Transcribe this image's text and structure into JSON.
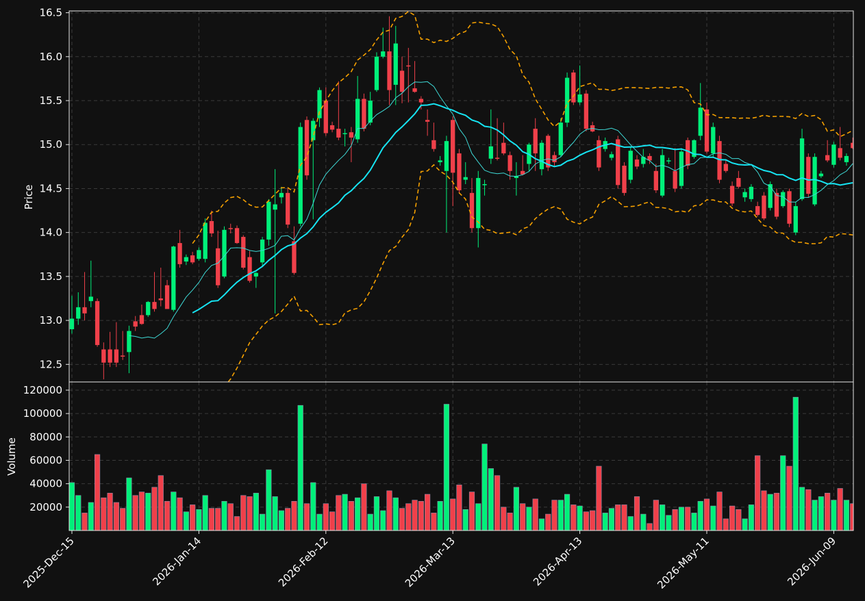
{
  "colors": {
    "background": "#111111",
    "up": "#00f07a",
    "down": "#f0404a",
    "ma_fast": "#3ed9d6",
    "ma_slow": "#16e4f2",
    "bands": "#f5a000",
    "grid": "#3a3a3a",
    "frame": "#e8e8e8",
    "text": "#ffffff"
  },
  "chart_data": {
    "type": "candlestick",
    "xlabel": "",
    "price_ylabel": "Price",
    "volume_ylabel": "Volume",
    "price_ylim": [
      12.3,
      16.52
    ],
    "volume_ylim": [
      0,
      127000
    ],
    "price_ticks": [
      "12.5",
      "13.0",
      "13.5",
      "14.0",
      "14.5",
      "15.0",
      "15.5",
      "16.0",
      "16.5"
    ],
    "volume_ticks": [
      "20000",
      "40000",
      "60000",
      "80000",
      "100000",
      "120000"
    ],
    "x_tick_labels": [
      "2025-Dec-15",
      "2026-Jan-14",
      "2026-Feb-12",
      "2026-Mar-13",
      "2026-Apr-13",
      "2026-May-11",
      "2026-Jun-09"
    ],
    "x_tick_index": [
      0,
      20,
      40,
      60,
      80,
      100,
      120
    ],
    "grid": true,
    "ma_fast_period": 10,
    "ma_slow_period": 20,
    "band_std": 2,
    "candles": [
      {
        "date": "2025-Dec-15",
        "o": 12.9,
        "h": 13.28,
        "l": 12.85,
        "c": 13.02,
        "v": 41000
      },
      {
        "date": "2025-Dec-16",
        "o": 13.02,
        "h": 13.32,
        "l": 12.95,
        "c": 13.15,
        "v": 30000
      },
      {
        "date": "2025-Dec-17",
        "o": 13.15,
        "h": 13.55,
        "l": 13.0,
        "c": 13.08,
        "v": 15000
      },
      {
        "date": "2025-Dec-18",
        "o": 13.22,
        "h": 13.68,
        "l": 13.15,
        "c": 13.27,
        "v": 24000
      },
      {
        "date": "2025-Dec-19",
        "o": 13.22,
        "h": 13.25,
        "l": 12.7,
        "c": 12.72,
        "v": 65000
      },
      {
        "date": "2025-Dec-22",
        "o": 12.67,
        "h": 12.75,
        "l": 12.33,
        "c": 12.52,
        "v": 28000
      },
      {
        "date": "2025-Dec-23",
        "o": 12.67,
        "h": 12.87,
        "l": 12.47,
        "c": 12.52,
        "v": 32000
      },
      {
        "date": "2025-Dec-24",
        "o": 12.67,
        "h": 12.98,
        "l": 12.47,
        "c": 12.52,
        "v": 24000
      },
      {
        "date": "2025-Dec-26",
        "o": 12.6,
        "h": 12.88,
        "l": 12.55,
        "c": 12.59,
        "v": 19000
      },
      {
        "date": "2025-Dec-29",
        "o": 12.64,
        "h": 12.94,
        "l": 12.4,
        "c": 12.88,
        "v": 45000
      },
      {
        "date": "2025-Dec-30",
        "o": 12.99,
        "h": 13.05,
        "l": 12.88,
        "c": 12.93,
        "v": 30000
      },
      {
        "date": "2025-Dec-31",
        "o": 13.06,
        "h": 13.18,
        "l": 12.95,
        "c": 12.96,
        "v": 33000
      },
      {
        "date": "2026-Jan-02",
        "o": 13.06,
        "h": 13.22,
        "l": 13.04,
        "c": 13.21,
        "v": 32000
      },
      {
        "date": "2026-Jan-05",
        "o": 13.21,
        "h": 13.55,
        "l": 13.1,
        "c": 13.13,
        "v": 37000
      },
      {
        "date": "2026-Jan-06",
        "o": 13.25,
        "h": 13.6,
        "l": 13.16,
        "c": 13.23,
        "v": 47000
      },
      {
        "date": "2026-Jan-07",
        "o": 13.4,
        "h": 13.46,
        "l": 13.15,
        "c": 13.13,
        "v": 25000
      },
      {
        "date": "2026-Jan-08",
        "o": 13.12,
        "h": 13.85,
        "l": 13.1,
        "c": 13.84,
        "v": 33000
      },
      {
        "date": "2026-Jan-09",
        "o": 13.88,
        "h": 14.03,
        "l": 13.6,
        "c": 13.64,
        "v": 28000
      },
      {
        "date": "2026-Jan-12",
        "o": 13.67,
        "h": 13.75,
        "l": 13.63,
        "c": 13.72,
        "v": 16000
      },
      {
        "date": "2026-Jan-13",
        "o": 13.74,
        "h": 13.78,
        "l": 13.64,
        "c": 13.66,
        "v": 22000
      },
      {
        "date": "2026-Jan-14",
        "o": 13.7,
        "h": 13.83,
        "l": 13.68,
        "c": 13.8,
        "v": 18000
      },
      {
        "date": "2026-Jan-15",
        "o": 13.7,
        "h": 14.16,
        "l": 13.66,
        "c": 14.11,
        "v": 30000
      },
      {
        "date": "2026-Jan-16",
        "o": 14.13,
        "h": 14.25,
        "l": 13.95,
        "c": 13.99,
        "v": 19000
      },
      {
        "date": "2026-Jan-20",
        "o": 13.82,
        "h": 14.02,
        "l": 13.37,
        "c": 13.4,
        "v": 19000
      },
      {
        "date": "2026-Jan-21",
        "o": 13.5,
        "h": 14.07,
        "l": 13.48,
        "c": 14.03,
        "v": 25000
      },
      {
        "date": "2026-Jan-22",
        "o": 14.05,
        "h": 14.1,
        "l": 13.99,
        "c": 14.04,
        "v": 23000
      },
      {
        "date": "2026-Jan-23",
        "o": 14.05,
        "h": 14.08,
        "l": 13.87,
        "c": 13.88,
        "v": 12000
      },
      {
        "date": "2026-Jan-26",
        "o": 13.95,
        "h": 13.97,
        "l": 13.58,
        "c": 13.6,
        "v": 30000
      },
      {
        "date": "2026-Jan-27",
        "o": 13.72,
        "h": 13.79,
        "l": 13.43,
        "c": 13.45,
        "v": 29000
      },
      {
        "date": "2026-Jan-28",
        "o": 13.5,
        "h": 13.55,
        "l": 13.37,
        "c": 13.54,
        "v": 32000
      },
      {
        "date": "2026-Jan-29",
        "o": 13.66,
        "h": 13.95,
        "l": 13.62,
        "c": 13.92,
        "v": 14000
      },
      {
        "date": "2026-Jan-30",
        "o": 13.92,
        "h": 14.38,
        "l": 13.85,
        "c": 14.35,
        "v": 52000
      },
      {
        "date": "2026-Feb-02",
        "o": 14.26,
        "h": 14.72,
        "l": 13.08,
        "c": 14.32,
        "v": 29000
      },
      {
        "date": "2026-Feb-03",
        "o": 14.4,
        "h": 14.52,
        "l": 14.33,
        "c": 14.45,
        "v": 17000
      },
      {
        "date": "2026-Feb-04",
        "o": 14.45,
        "h": 14.5,
        "l": 14.05,
        "c": 14.09,
        "v": 19000
      },
      {
        "date": "2026-Feb-05",
        "o": 13.9,
        "h": 14.07,
        "l": 13.52,
        "c": 13.54,
        "v": 25000
      },
      {
        "date": "2026-Feb-06",
        "o": 14.1,
        "h": 15.25,
        "l": 14.07,
        "c": 15.2,
        "v": 107000
      },
      {
        "date": "2026-Feb-09",
        "o": 15.28,
        "h": 15.32,
        "l": 14.6,
        "c": 14.65,
        "v": 23000
      },
      {
        "date": "2026-Feb-10",
        "o": 15.05,
        "h": 15.3,
        "l": 14.15,
        "c": 15.27,
        "v": 41000
      },
      {
        "date": "2026-Feb-11",
        "o": 15.3,
        "h": 15.65,
        "l": 15.2,
        "c": 15.62,
        "v": 14000
      },
      {
        "date": "2026-Feb-12",
        "o": 15.5,
        "h": 15.65,
        "l": 15.1,
        "c": 15.13,
        "v": 23000
      },
      {
        "date": "2026-Feb-13",
        "o": 15.22,
        "h": 15.26,
        "l": 15.14,
        "c": 15.17,
        "v": 16000
      },
      {
        "date": "2026-Feb-17",
        "o": 15.18,
        "h": 15.72,
        "l": 15.05,
        "c": 15.08,
        "v": 30000
      },
      {
        "date": "2026-Feb-18",
        "o": 15.12,
        "h": 15.18,
        "l": 14.98,
        "c": 15.13,
        "v": 31000
      },
      {
        "date": "2026-Feb-19",
        "o": 15.14,
        "h": 15.2,
        "l": 14.8,
        "c": 15.08,
        "v": 25000
      },
      {
        "date": "2026-Feb-20",
        "o": 15.06,
        "h": 15.78,
        "l": 15.02,
        "c": 15.52,
        "v": 28000
      },
      {
        "date": "2026-Feb-23",
        "o": 15.52,
        "h": 15.58,
        "l": 15.15,
        "c": 15.18,
        "v": 40000
      },
      {
        "date": "2026-Feb-24",
        "o": 15.25,
        "h": 15.6,
        "l": 15.22,
        "c": 15.5,
        "v": 14000
      },
      {
        "date": "2026-Feb-25",
        "o": 15.62,
        "h": 16.05,
        "l": 15.6,
        "c": 16.0,
        "v": 29000
      },
      {
        "date": "2026-Feb-26",
        "o": 16.0,
        "h": 16.33,
        "l": 15.98,
        "c": 16.06,
        "v": 17000
      },
      {
        "date": "2026-Feb-27",
        "o": 16.06,
        "h": 16.46,
        "l": 15.45,
        "c": 15.62,
        "v": 34000
      },
      {
        "date": "2026-Mar-02",
        "o": 15.68,
        "h": 16.35,
        "l": 15.45,
        "c": 16.15,
        "v": 28000
      },
      {
        "date": "2026-Mar-03",
        "o": 15.84,
        "h": 16.0,
        "l": 15.47,
        "c": 15.6,
        "v": 19000
      },
      {
        "date": "2026-Mar-04",
        "o": 15.9,
        "h": 16.1,
        "l": 15.48,
        "c": 15.89,
        "v": 23000
      },
      {
        "date": "2026-Mar-05",
        "o": 15.64,
        "h": 15.95,
        "l": 15.59,
        "c": 15.6,
        "v": 26000
      },
      {
        "date": "2026-Mar-06",
        "o": 15.52,
        "h": 15.55,
        "l": 15.4,
        "c": 15.48,
        "v": 25000
      },
      {
        "date": "2026-Mar-09",
        "o": 15.28,
        "h": 15.4,
        "l": 15.1,
        "c": 15.26,
        "v": 31000
      },
      {
        "date": "2026-Mar-10",
        "o": 15.05,
        "h": 15.25,
        "l": 14.92,
        "c": 14.95,
        "v": 15000
      },
      {
        "date": "2026-Mar-11",
        "o": 14.8,
        "h": 14.87,
        "l": 14.76,
        "c": 14.82,
        "v": 25000
      },
      {
        "date": "2026-Mar-12",
        "o": 14.7,
        "h": 15.1,
        "l": 14.0,
        "c": 15.04,
        "v": 108000
      },
      {
        "date": "2026-Mar-13",
        "o": 15.28,
        "h": 15.32,
        "l": 14.3,
        "c": 14.68,
        "v": 27000
      },
      {
        "date": "2026-Mar-16",
        "o": 14.9,
        "h": 14.95,
        "l": 14.45,
        "c": 14.48,
        "v": 39000
      },
      {
        "date": "2026-Mar-17",
        "o": 14.6,
        "h": 14.8,
        "l": 14.55,
        "c": 14.63,
        "v": 18000
      },
      {
        "date": "2026-Mar-18",
        "o": 14.45,
        "h": 14.62,
        "l": 14.0,
        "c": 14.05,
        "v": 33000
      },
      {
        "date": "2026-Mar-19",
        "o": 14.05,
        "h": 14.7,
        "l": 13.83,
        "c": 14.62,
        "v": 23000
      },
      {
        "date": "2026-Mar-20",
        "o": 14.55,
        "h": 14.6,
        "l": 14.42,
        "c": 14.55,
        "v": 74000
      },
      {
        "date": "2026-Mar-23",
        "o": 14.84,
        "h": 15.4,
        "l": 14.78,
        "c": 14.98,
        "v": 53000
      },
      {
        "date": "2026-Mar-24",
        "o": 14.85,
        "h": 15.3,
        "l": 14.82,
        "c": 14.84,
        "v": 47000
      },
      {
        "date": "2026-Mar-25",
        "o": 15.02,
        "h": 15.25,
        "l": 14.88,
        "c": 14.9,
        "v": 20000
      },
      {
        "date": "2026-Mar-26",
        "o": 14.88,
        "h": 14.92,
        "l": 14.6,
        "c": 14.7,
        "v": 15000
      },
      {
        "date": "2026-Mar-27",
        "o": 14.62,
        "h": 14.8,
        "l": 14.42,
        "c": 14.64,
        "v": 37000
      },
      {
        "date": "2026-Mar-30",
        "o": 14.7,
        "h": 14.88,
        "l": 14.65,
        "c": 14.66,
        "v": 23000
      },
      {
        "date": "2026-Mar-31",
        "o": 14.78,
        "h": 15.02,
        "l": 14.7,
        "c": 15.0,
        "v": 20000
      },
      {
        "date": "2026-Apr-01",
        "o": 15.18,
        "h": 15.3,
        "l": 14.7,
        "c": 14.9,
        "v": 27000
      },
      {
        "date": "2026-Apr-02",
        "o": 14.72,
        "h": 15.05,
        "l": 14.65,
        "c": 15.02,
        "v": 10000
      },
      {
        "date": "2026-Apr-06",
        "o": 15.1,
        "h": 15.12,
        "l": 14.7,
        "c": 14.74,
        "v": 14000
      },
      {
        "date": "2026-Apr-07",
        "o": 14.88,
        "h": 14.92,
        "l": 14.75,
        "c": 14.8,
        "v": 26000
      },
      {
        "date": "2026-Apr-08",
        "o": 14.88,
        "h": 15.3,
        "l": 14.86,
        "c": 15.25,
        "v": 26000
      },
      {
        "date": "2026-Apr-09",
        "o": 15.25,
        "h": 15.82,
        "l": 15.2,
        "c": 15.76,
        "v": 31000
      },
      {
        "date": "2026-Apr-10",
        "o": 15.82,
        "h": 15.85,
        "l": 15.45,
        "c": 15.48,
        "v": 22000
      },
      {
        "date": "2026-Apr-13",
        "o": 15.48,
        "h": 15.9,
        "l": 15.45,
        "c": 15.57,
        "v": 21000
      },
      {
        "date": "2026-Apr-14",
        "o": 15.58,
        "h": 15.62,
        "l": 15.15,
        "c": 15.18,
        "v": 16000
      },
      {
        "date": "2026-Apr-15",
        "o": 15.22,
        "h": 15.26,
        "l": 15.14,
        "c": 15.15,
        "v": 17000
      },
      {
        "date": "2026-Apr-16",
        "o": 15.05,
        "h": 15.1,
        "l": 14.7,
        "c": 14.74,
        "v": 55000
      },
      {
        "date": "2026-Apr-17",
        "o": 14.95,
        "h": 15.08,
        "l": 14.92,
        "c": 15.04,
        "v": 15000
      },
      {
        "date": "2026-Apr-20",
        "o": 14.85,
        "h": 14.92,
        "l": 14.82,
        "c": 14.89,
        "v": 19000
      },
      {
        "date": "2026-Apr-21",
        "o": 15.06,
        "h": 15.1,
        "l": 14.5,
        "c": 14.54,
        "v": 22000
      },
      {
        "date": "2026-Apr-22",
        "o": 14.76,
        "h": 14.8,
        "l": 14.42,
        "c": 14.45,
        "v": 22000
      },
      {
        "date": "2026-Apr-23",
        "o": 14.6,
        "h": 14.98,
        "l": 14.56,
        "c": 14.93,
        "v": 12000
      },
      {
        "date": "2026-Apr-24",
        "o": 14.83,
        "h": 14.88,
        "l": 14.72,
        "c": 14.75,
        "v": 29000
      },
      {
        "date": "2026-Apr-27",
        "o": 14.78,
        "h": 14.95,
        "l": 14.74,
        "c": 14.86,
        "v": 14000
      },
      {
        "date": "2026-Apr-28",
        "o": 14.87,
        "h": 14.9,
        "l": 14.78,
        "c": 14.82,
        "v": 6000
      },
      {
        "date": "2026-Apr-29",
        "o": 14.7,
        "h": 14.78,
        "l": 14.45,
        "c": 14.48,
        "v": 26000
      },
      {
        "date": "2026-Apr-30",
        "o": 14.42,
        "h": 14.95,
        "l": 14.4,
        "c": 14.88,
        "v": 22000
      },
      {
        "date": "2026-May-01",
        "o": 14.82,
        "h": 14.85,
        "l": 14.78,
        "c": 14.82,
        "v": 13000
      },
      {
        "date": "2026-May-04",
        "o": 14.7,
        "h": 14.96,
        "l": 14.46,
        "c": 14.5,
        "v": 18000
      },
      {
        "date": "2026-May-05",
        "o": 14.53,
        "h": 14.96,
        "l": 14.5,
        "c": 14.92,
        "v": 20000
      },
      {
        "date": "2026-May-06",
        "o": 15.05,
        "h": 15.08,
        "l": 14.72,
        "c": 14.76,
        "v": 20000
      },
      {
        "date": "2026-May-07",
        "o": 14.86,
        "h": 15.06,
        "l": 14.84,
        "c": 15.05,
        "v": 15000
      },
      {
        "date": "2026-May-08",
        "o": 15.1,
        "h": 15.7,
        "l": 15.05,
        "c": 15.42,
        "v": 25000
      },
      {
        "date": "2026-May-11",
        "o": 15.4,
        "h": 15.48,
        "l": 14.9,
        "c": 14.92,
        "v": 27000
      },
      {
        "date": "2026-May-12",
        "o": 14.9,
        "h": 15.25,
        "l": 14.85,
        "c": 15.2,
        "v": 21000
      },
      {
        "date": "2026-May-13",
        "o": 15.04,
        "h": 15.1,
        "l": 14.56,
        "c": 14.6,
        "v": 33000
      },
      {
        "date": "2026-May-14",
        "o": 14.78,
        "h": 14.82,
        "l": 14.68,
        "c": 14.7,
        "v": 10000
      },
      {
        "date": "2026-May-15",
        "o": 14.53,
        "h": 14.58,
        "l": 14.3,
        "c": 14.33,
        "v": 21000
      },
      {
        "date": "2026-May-18",
        "o": 14.62,
        "h": 14.7,
        "l": 14.5,
        "c": 14.52,
        "v": 18000
      },
      {
        "date": "2026-May-19",
        "o": 14.4,
        "h": 14.5,
        "l": 14.35,
        "c": 14.46,
        "v": 10000
      },
      {
        "date": "2026-May-20",
        "o": 14.38,
        "h": 14.55,
        "l": 14.35,
        "c": 14.52,
        "v": 22000
      },
      {
        "date": "2026-May-21",
        "o": 14.3,
        "h": 14.35,
        "l": 14.18,
        "c": 14.2,
        "v": 64000
      },
      {
        "date": "2026-May-22",
        "o": 14.42,
        "h": 14.46,
        "l": 14.14,
        "c": 14.16,
        "v": 34000
      },
      {
        "date": "2026-May-26",
        "o": 14.28,
        "h": 14.58,
        "l": 14.25,
        "c": 14.55,
        "v": 31000
      },
      {
        "date": "2026-May-27",
        "o": 14.45,
        "h": 14.5,
        "l": 14.15,
        "c": 14.18,
        "v": 32000
      },
      {
        "date": "2026-May-28",
        "o": 14.3,
        "h": 14.48,
        "l": 14.28,
        "c": 14.46,
        "v": 64000
      },
      {
        "date": "2026-May-29",
        "o": 14.47,
        "h": 14.5,
        "l": 14.06,
        "c": 14.1,
        "v": 55000
      },
      {
        "date": "2026-Jun-01",
        "o": 14.0,
        "h": 14.35,
        "l": 13.97,
        "c": 14.3,
        "v": 114000
      },
      {
        "date": "2026-Jun-02",
        "o": 14.38,
        "h": 15.18,
        "l": 14.36,
        "c": 15.07,
        "v": 37000
      },
      {
        "date": "2026-Jun-03",
        "o": 14.86,
        "h": 14.9,
        "l": 14.4,
        "c": 14.44,
        "v": 35000
      },
      {
        "date": "2026-Jun-04",
        "o": 14.32,
        "h": 14.9,
        "l": 14.3,
        "c": 14.86,
        "v": 26000
      },
      {
        "date": "2026-Jun-05",
        "o": 14.64,
        "h": 14.7,
        "l": 14.62,
        "c": 14.67,
        "v": 29000
      },
      {
        "date": "2026-Jun-08",
        "o": 14.88,
        "h": 15.05,
        "l": 14.8,
        "c": 14.82,
        "v": 32000
      },
      {
        "date": "2026-Jun-09",
        "o": 14.77,
        "h": 15.03,
        "l": 14.74,
        "c": 15.0,
        "v": 26000
      },
      {
        "date": "2026-Jun-10",
        "o": 14.96,
        "h": 15.2,
        "l": 14.82,
        "c": 14.85,
        "v": 36000
      },
      {
        "date": "2026-Jun-11",
        "o": 14.8,
        "h": 14.9,
        "l": 14.76,
        "c": 14.87,
        "v": 26000
      },
      {
        "date": "2026-Jun-12",
        "o": 15.02,
        "h": 15.08,
        "l": 14.95,
        "c": 14.96,
        "v": 23000
      }
    ]
  }
}
